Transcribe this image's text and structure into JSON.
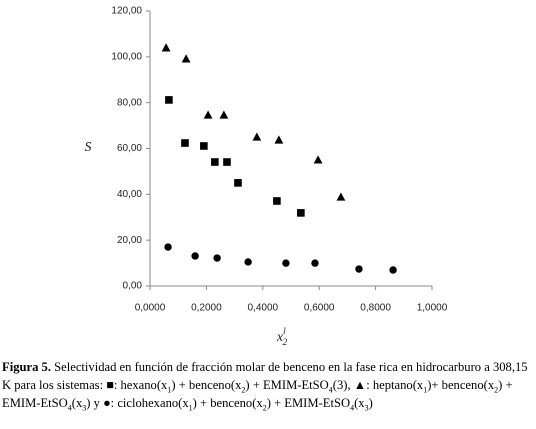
{
  "chart_data": {
    "type": "scatter",
    "ylabel": "S",
    "xlabel": {
      "base": "x",
      "sup": "l",
      "sub": "2"
    },
    "xlim": [
      0,
      1
    ],
    "xticks": [
      {
        "value": 0,
        "label": "0,0000"
      },
      {
        "value": 0.2,
        "label": "0,2000"
      },
      {
        "value": 0.4,
        "label": "0,4000"
      },
      {
        "value": 0.6,
        "label": "0,6000"
      },
      {
        "value": 0.8,
        "label": "0,8000"
      },
      {
        "value": 1,
        "label": "1,0000"
      }
    ],
    "ylim": [
      0,
      120
    ],
    "yticks": [
      {
        "value": 0,
        "label": "0,00"
      },
      {
        "value": 20,
        "label": "20,00"
      },
      {
        "value": 40,
        "label": "40,00"
      },
      {
        "value": 60,
        "label": "60,00"
      },
      {
        "value": 80,
        "label": "80,00"
      },
      {
        "value": 100,
        "label": "100,00"
      },
      {
        "value": 120,
        "label": "120,00"
      }
    ],
    "series": [
      {
        "marker": "square",
        "color": "#000000",
        "x": [
          0.067,
          0.124,
          0.191,
          0.23,
          0.273,
          0.312,
          0.45,
          0.535
        ],
        "values": [
          81.2,
          62.4,
          61.1,
          54.1,
          54.1,
          45.0,
          37.1,
          31.9
        ]
      },
      {
        "marker": "triangle",
        "color": "#000000",
        "x": [
          0.057,
          0.128,
          0.206,
          0.262,
          0.379,
          0.457,
          0.596,
          0.677
        ],
        "values": [
          103.9,
          99.1,
          74.6,
          74.6,
          65.0,
          63.7,
          55.0,
          38.8
        ]
      },
      {
        "marker": "circle",
        "color": "#000000",
        "x": [
          0.064,
          0.16,
          0.238,
          0.348,
          0.482,
          0.585,
          0.741,
          0.862
        ],
        "values": [
          17.0,
          13.1,
          12.2,
          10.5,
          10.0,
          10.0,
          7.4,
          7.0
        ]
      }
    ]
  },
  "caption": {
    "label": "Figura 5.",
    "parts": [
      {
        "text": " Selectividad en función de fracción molar de benceno en la fase rica en hidrocarburo a 308,15 K para los sistemas: ■: hexano(x"
      },
      {
        "sub": "1"
      },
      {
        "text": ") + benceno(x"
      },
      {
        "sub": "2"
      },
      {
        "text": ") + EMIM-EtSO"
      },
      {
        "sub": "4"
      },
      {
        "text": "(3), ▲: heptano(x"
      },
      {
        "sub": "1"
      },
      {
        "text": ")+ benceno(x"
      },
      {
        "sub": "2"
      },
      {
        "text": ") + EMIM-EtSO"
      },
      {
        "sub": "4"
      },
      {
        "text": "(x"
      },
      {
        "sub": "3"
      },
      {
        "text": ") y ●: ciclohexano(x"
      },
      {
        "sub": "1"
      },
      {
        "text": ") + benceno(x"
      },
      {
        "sub": "2"
      },
      {
        "text": ") + EMIM-EtSO"
      },
      {
        "sub": "4"
      },
      {
        "text": "(x"
      },
      {
        "sub": "3"
      },
      {
        "text": ")"
      }
    ]
  }
}
